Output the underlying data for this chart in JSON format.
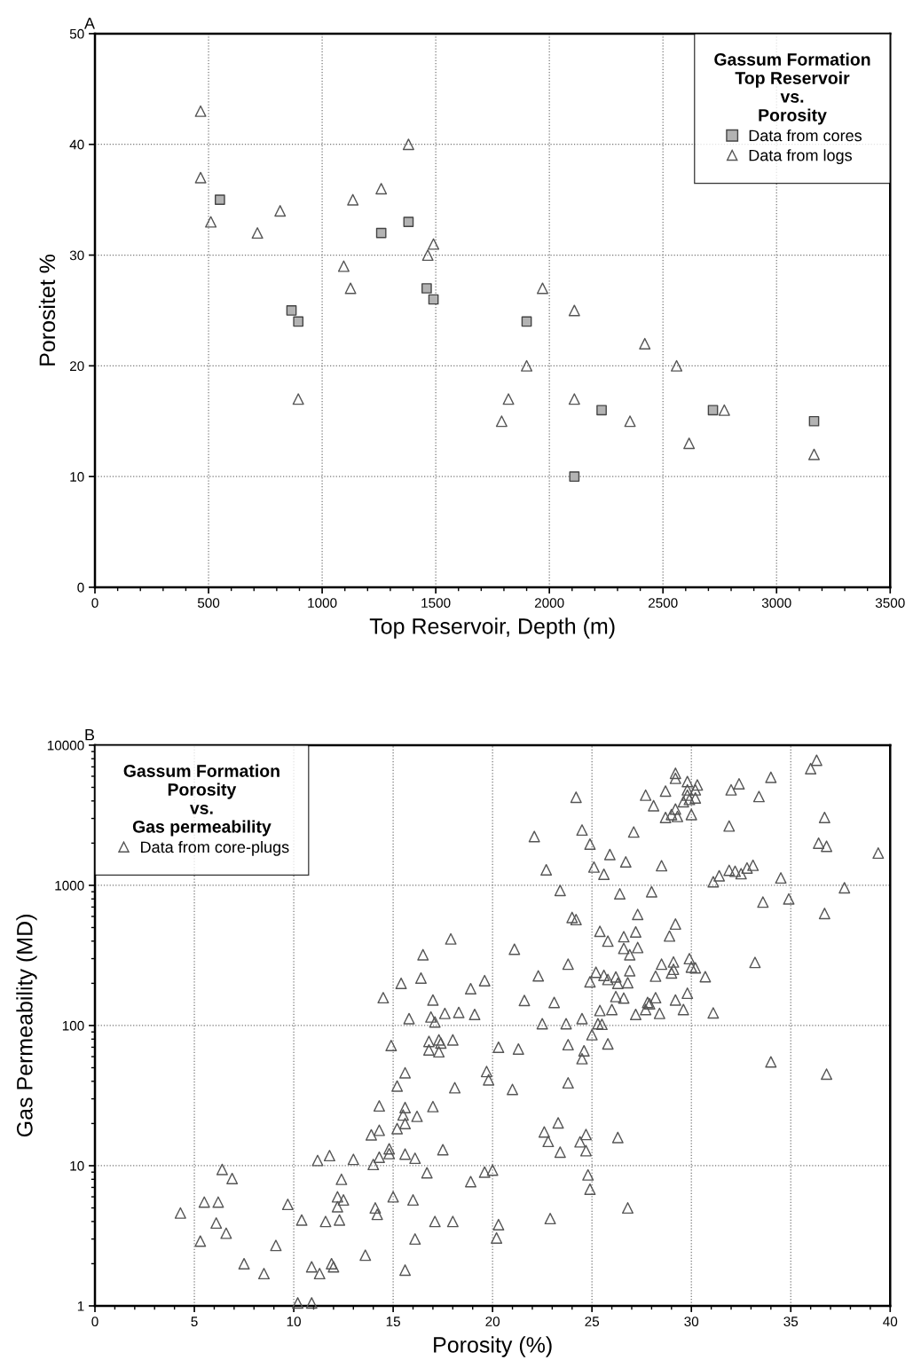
{
  "chart_data": [
    {
      "type": "scatter",
      "title": "A",
      "xlabel": "Top Reservoir, Depth (m)",
      "ylabel": "Porositet %",
      "legend_title": "Gassum Formation\nTop Reservoir\nvs.\nPorosity",
      "legend": "top right",
      "grid": true,
      "xlim": [
        0,
        3500
      ],
      "xticks": [
        0,
        {
          "value": 100,
          "label": null
        },
        {
          "value": 200,
          "label": null
        },
        {
          "value": 300,
          "label": null
        },
        {
          "value": 400,
          "label": null
        },
        500,
        {
          "value": 600,
          "label": null
        },
        {
          "value": 700,
          "label": null
        },
        {
          "value": 800,
          "label": null
        },
        {
          "value": 900,
          "label": null
        },
        1000,
        {
          "value": 1100,
          "label": null
        },
        {
          "value": 1200,
          "label": null
        },
        {
          "value": 1300,
          "label": null
        },
        {
          "value": 1400,
          "label": null
        },
        1500,
        {
          "value": 1600,
          "label": null
        },
        {
          "value": 1700,
          "label": null
        },
        {
          "value": 1800,
          "label": null
        },
        {
          "value": 1900,
          "label": null
        },
        2000,
        {
          "value": 2100,
          "label": null
        },
        {
          "value": 2200,
          "label": null
        },
        {
          "value": 2300,
          "label": null
        },
        {
          "value": 2400,
          "label": null
        },
        2500,
        {
          "value": 2600,
          "label": null
        },
        {
          "value": 2700,
          "label": null
        },
        {
          "value": 2800,
          "label": null
        },
        {
          "value": 2900,
          "label": null
        },
        3000,
        {
          "value": 3100,
          "label": null
        },
        {
          "value": 3200,
          "label": null
        },
        {
          "value": 3300,
          "label": null
        },
        {
          "value": 3400,
          "label": null
        },
        3500
      ],
      "ylim": [
        0,
        50
      ],
      "yticks": [
        0,
        10,
        20,
        30,
        40,
        50
      ],
      "series": [
        {
          "name": "Data from cores",
          "marker": "square",
          "color": "#b3b3b3",
          "x": [
            550,
            865,
            895,
            1260,
            1380,
            1460,
            1490,
            1900,
            2110,
            2230,
            2720,
            3165
          ],
          "values": [
            35,
            25,
            24,
            32,
            33,
            27,
            26,
            24,
            10,
            16,
            16,
            15
          ]
        },
        {
          "name": "Data from logs",
          "marker": "triangle",
          "color": "#555555",
          "x": [
            465,
            465,
            510,
            715,
            815,
            1095,
            1125,
            1135,
            1260,
            1380,
            1465,
            1490,
            1790,
            1820,
            1900,
            1970,
            2110,
            2110,
            895,
            2355,
            2420,
            2560,
            2615,
            2770,
            3165
          ],
          "values": [
            43,
            37,
            33,
            32,
            34,
            29,
            27,
            35,
            36,
            40,
            30,
            31,
            15,
            17,
            20,
            27,
            25,
            17,
            17,
            15,
            22,
            20,
            13,
            16,
            12
          ]
        }
      ]
    },
    {
      "type": "scatter",
      "title": "B",
      "xlabel": "Porosity (%)",
      "ylabel": "Gas Permeability (MD)",
      "legend_title": "Gassum Formation\nPorosity\nvs.\nGas permeability",
      "legend": "top left",
      "grid": true,
      "log": "y",
      "xlim": [
        0,
        40
      ],
      "xticks": [
        0,
        {
          "value": 1,
          "label": null
        },
        {
          "value": 2,
          "label": null
        },
        {
          "value": 3,
          "label": null
        },
        {
          "value": 4,
          "label": null
        },
        5,
        {
          "value": 6,
          "label": null
        },
        {
          "value": 7,
          "label": null
        },
        {
          "value": 8,
          "label": null
        },
        {
          "value": 9,
          "label": null
        },
        10,
        {
          "value": 11,
          "label": null
        },
        {
          "value": 12,
          "label": null
        },
        {
          "value": 13,
          "label": null
        },
        {
          "value": 14,
          "label": null
        },
        15,
        {
          "value": 16,
          "label": null
        },
        {
          "value": 17,
          "label": null
        },
        {
          "value": 18,
          "label": null
        },
        {
          "value": 19,
          "label": null
        },
        20,
        {
          "value": 21,
          "label": null
        },
        {
          "value": 22,
          "label": null
        },
        {
          "value": 23,
          "label": null
        },
        {
          "value": 24,
          "label": null
        },
        25,
        {
          "value": 26,
          "label": null
        },
        {
          "value": 27,
          "label": null
        },
        {
          "value": 28,
          "label": null
        },
        {
          "value": 29,
          "label": null
        },
        30,
        {
          "value": 31,
          "label": null
        },
        {
          "value": 32,
          "label": null
        },
        {
          "value": 33,
          "label": null
        },
        {
          "value": 34,
          "label": null
        },
        35,
        {
          "value": 36,
          "label": null
        },
        {
          "value": 37,
          "label": null
        },
        {
          "value": 38,
          "label": null
        },
        {
          "value": 39,
          "label": null
        },
        40
      ],
      "ylim": [
        1,
        10000
      ],
      "yticks": [
        1,
        {
          "value": 2,
          "label": null
        },
        {
          "value": 3,
          "label": null
        },
        {
          "value": 4,
          "label": null
        },
        {
          "value": 5,
          "label": null
        },
        {
          "value": 6,
          "label": null
        },
        {
          "value": 7,
          "label": null
        },
        {
          "value": 8,
          "label": null
        },
        {
          "value": 9,
          "label": null
        },
        10,
        {
          "value": 20,
          "label": null
        },
        {
          "value": 30,
          "label": null
        },
        {
          "value": 40,
          "label": null
        },
        {
          "value": 50,
          "label": null
        },
        {
          "value": 60,
          "label": null
        },
        {
          "value": 70,
          "label": null
        },
        {
          "value": 80,
          "label": null
        },
        {
          "value": 90,
          "label": null
        },
        100,
        {
          "value": 200,
          "label": null
        },
        {
          "value": 300,
          "label": null
        },
        {
          "value": 400,
          "label": null
        },
        {
          "value": 500,
          "label": null
        },
        {
          "value": 600,
          "label": null
        },
        {
          "value": 700,
          "label": null
        },
        {
          "value": 800,
          "label": null
        },
        {
          "value": 900,
          "label": null
        },
        1000,
        {
          "value": 2000,
          "label": null
        },
        {
          "value": 3000,
          "label": null
        },
        {
          "value": 4000,
          "label": null
        },
        {
          "value": 5000,
          "label": null
        },
        {
          "value": 6000,
          "label": null
        },
        {
          "value": 7000,
          "label": null
        },
        {
          "value": 8000,
          "label": null
        },
        {
          "value": 9000,
          "label": null
        },
        10000
      ],
      "series": [
        {
          "name": "Data from core-plugs",
          "marker": "triangle",
          "color": "#555555",
          "x": [
            4.3,
            5.5,
            6.2,
            6.4,
            6.9,
            6.1,
            6.6,
            5.3,
            7.5,
            8.5,
            9.1,
            9.7,
            10.4,
            10.9,
            11.3,
            10.2,
            10.9,
            11.2,
            11.8,
            12.4,
            12.2,
            12.5,
            12.2,
            12.3,
            11.6,
            11.9,
            12.0,
            13.0,
            13.6,
            13.9,
            14.3,
            14.0,
            14.3,
            14.1,
            14.2,
            14.3,
            14.9,
            14.8,
            14.8,
            15.2,
            15.2,
            15.6,
            15.6,
            15.5,
            15.6,
            15.6,
            15.0,
            15.6,
            15.8,
            16.2,
            16.1,
            16.0,
            16.1,
            16.9,
            17.1,
            16.8,
            17.3,
            17.4,
            16.8,
            17.3,
            18.0,
            17.0,
            17.5,
            16.7,
            17.1,
            18.0,
            18.1,
            18.9,
            19.7,
            19.8,
            19.6,
            20.0,
            24.2,
            24.5,
            22.1,
            24.9,
            25.9,
            25.1,
            25.6,
            22.7,
            23.4,
            24.0,
            24.2,
            25.4,
            25.8,
            21.1,
            17.9,
            16.5,
            16.4,
            15.4,
            14.5,
            17.0,
            17.6,
            18.3,
            19.1,
            18.9,
            19.6,
            22.3,
            23.8,
            21.6,
            23.1,
            25.2,
            25.6,
            25.8,
            24.9,
            25.4,
            26.0,
            24.5,
            22.5,
            23.7,
            25.3,
            25.5,
            25.0,
            20.3,
            21.3,
            23.8,
            24.6,
            24.5,
            25.8,
            21.0,
            23.8,
            23.3,
            22.6,
            22.8,
            23.4,
            24.7,
            24.4,
            24.7,
            26.3,
            24.8,
            24.9,
            26.8,
            22.9,
            20.3,
            20.2,
            36.3,
            36.0,
            34.0,
            32.4,
            32.0,
            33.4,
            29.2,
            29.2,
            29.8,
            30.3,
            29.8,
            30.2,
            28.7,
            27.7,
            29.8,
            30.2,
            29.9,
            29.6,
            28.1,
            29.2,
            29.0,
            28.7,
            29.3,
            30.0,
            31.9,
            36.7,
            36.4,
            36.8,
            39.4,
            27.1,
            26.7,
            28.5,
            31.9,
            32.2,
            32.5,
            32.8,
            33.1,
            31.4,
            31.1,
            34.5,
            37.7,
            33.6,
            34.9,
            36.7,
            26.4,
            28.0,
            27.3,
            29.2,
            27.2,
            26.6,
            28.9,
            26.6,
            27.3,
            26.9,
            29.9,
            29.1,
            28.5,
            29.1,
            29.0,
            30.0,
            30.2,
            26.9,
            28.2,
            30.7,
            26.2,
            26.3,
            26.8,
            33.2,
            26.2,
            26.6,
            28.2,
            29.8,
            29.2,
            27.8,
            27.9,
            27.7,
            29.6,
            27.2,
            28.4,
            31.1,
            34.0,
            36.8
          ],
          "values": [
            4.6,
            5.5,
            5.5,
            9.4,
            8.1,
            3.9,
            3.3,
            2.9,
            2.0,
            1.7,
            2.7,
            5.3,
            4.1,
            1.9,
            1.7,
            1.05,
            1.05,
            10.9,
            11.8,
            8.0,
            6.0,
            5.7,
            5.1,
            4.1,
            4.0,
            2.0,
            1.9,
            11.1,
            2.3,
            16.6,
            17.9,
            10.2,
            11.5,
            5.0,
            4.5,
            26.7,
            72,
            13.2,
            12.2,
            37,
            18.4,
            46,
            26,
            23,
            20,
            12.1,
            6.0,
            1.8,
            112,
            22.5,
            11.3,
            5.7,
            3.0,
            115,
            106,
            77,
            79,
            75,
            67,
            65,
            79,
            26.4,
            13.0,
            8.9,
            4.0,
            4.0,
            36,
            7.7,
            47,
            41,
            9.0,
            9.3,
            4250,
            2480,
            2230,
            1970,
            1660,
            1350,
            1200,
            1290,
            920,
            590,
            570,
            470,
            400,
            350,
            415,
            320,
            218,
            200,
            158,
            152,
            122,
            124,
            120,
            183,
            209,
            226,
            274,
            151,
            146,
            240,
            228,
            213,
            205,
            128,
            130,
            112,
            103,
            103,
            103,
            102,
            86,
            70,
            68,
            73,
            66,
            58,
            74,
            35,
            39,
            20.2,
            17.4,
            14.9,
            12.5,
            16.7,
            14.8,
            12.8,
            15.9,
            8.6,
            6.8,
            5.0,
            4.2,
            3.8,
            3.05,
            7800,
            6800,
            5900,
            5300,
            4800,
            4300,
            6300,
            5800,
            5500,
            5200,
            4800,
            4800,
            4700,
            4400,
            4400,
            4200,
            4100,
            3950,
            3700,
            3500,
            3200,
            3050,
            3100,
            3200,
            2650,
            3050,
            2000,
            1900,
            1700,
            2400,
            1470,
            1380,
            1280,
            1260,
            1210,
            1330,
            1390,
            1170,
            1060,
            1130,
            960,
            760,
            800,
            630,
            870,
            900,
            620,
            530,
            465,
            430,
            435,
            355,
            360,
            320,
            300,
            284,
            274,
            252,
            237,
            261,
            258,
            246,
            225,
            223,
            222,
            200,
            202,
            282,
            161,
            157,
            158,
            170,
            152,
            146,
            143,
            130,
            130,
            120,
            122,
            123,
            55,
            45
          ]
        }
      ]
    }
  ]
}
